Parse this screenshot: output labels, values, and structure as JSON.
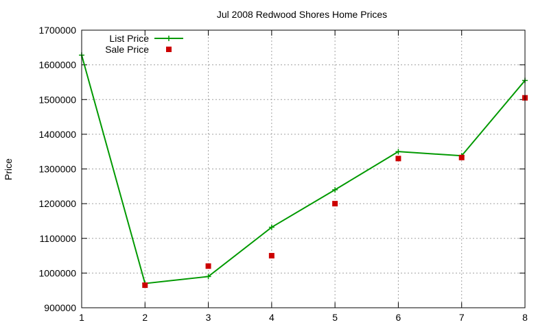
{
  "chart_data": {
    "type": "line",
    "title": "Jul 2008 Redwood Shores Home Prices",
    "xlabel": "",
    "ylabel": "Price",
    "x": [
      1,
      2,
      3,
      4,
      5,
      6,
      7,
      8
    ],
    "xlim": [
      1,
      8
    ],
    "ylim": [
      900000,
      1700000
    ],
    "xticks": [
      "1",
      "2",
      "3",
      "4",
      "5",
      "6",
      "7",
      "8"
    ],
    "yticks": [
      "900000",
      "1000000",
      "1100000",
      "1200000",
      "1300000",
      "1400000",
      "1500000",
      "1600000",
      "1700000"
    ],
    "grid": true,
    "legend_position": "top-left",
    "series": [
      {
        "name": "List Price",
        "style": "linespoints",
        "color": "#009900",
        "values": [
          1628000,
          970000,
          990000,
          1132000,
          1240000,
          1350000,
          1338000,
          1555000
        ]
      },
      {
        "name": "Sale Price",
        "style": "points",
        "color": "#cc0000",
        "values": [
          null,
          965000,
          1020000,
          1050000,
          1200000,
          1330000,
          1333000,
          1505000
        ]
      }
    ]
  }
}
